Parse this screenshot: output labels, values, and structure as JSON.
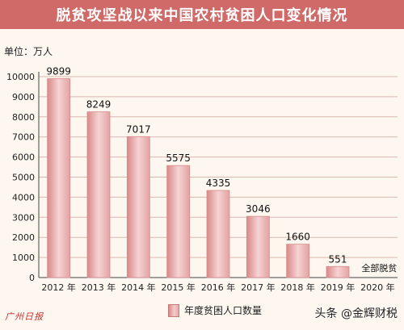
{
  "header": {
    "title": "脱贫攻坚战以来中国农村贫困人口变化情况"
  },
  "unit": "单位：万人",
  "chart_data": {
    "type": "bar",
    "categories": [
      "2012 年",
      "2013 年",
      "2014 年",
      "2015 年",
      "2016 年",
      "2017 年",
      "2018 年",
      "2019 年",
      "2020 年"
    ],
    "values": [
      9899,
      8249,
      7017,
      5575,
      4335,
      3046,
      1660,
      551,
      null
    ],
    "value_labels": [
      "9899",
      "8249",
      "7017",
      "5575",
      "4335",
      "3046",
      "1660",
      "551",
      ""
    ],
    "annotation": {
      "category": "2020 年",
      "text": "全部脱贫"
    },
    "ylim": [
      0,
      10000
    ],
    "yticks": [
      0,
      1000,
      2000,
      3000,
      4000,
      5000,
      6000,
      7000,
      8000,
      9000,
      10000
    ],
    "grid": true,
    "legend": {
      "position": "bottom",
      "label": "年度贫困人口数量"
    },
    "colors": {
      "bar": "#f0bcbc",
      "bar_edge": "#d68a8a",
      "grid": "#d9b8b0",
      "axis": "#444444"
    }
  },
  "watermarks": {
    "left": "广州日报",
    "right": "头条 @金辉财税"
  }
}
